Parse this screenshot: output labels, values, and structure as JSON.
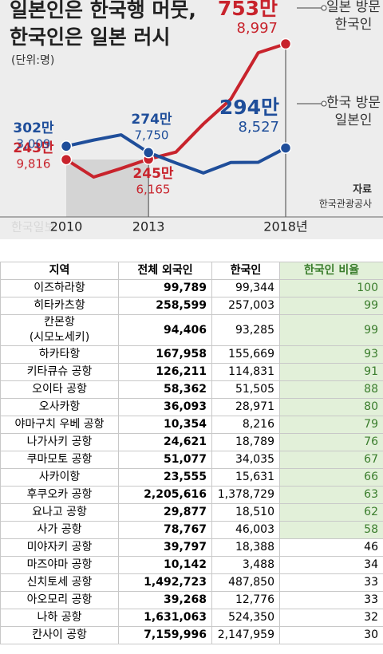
{
  "chart_data": {
    "type": "line",
    "title": "일본인은 한국행 머뭇,\n한국인은 일본 러시",
    "subtitle": "(단위:명)",
    "categories": [
      "2010",
      null,
      null,
      "2013",
      null,
      null,
      null,
      null,
      "2018년"
    ],
    "series": [
      {
        "name": "일본 방문 한국인",
        "color": "#c8232c",
        "values": [
          243,
          166,
          204,
          245,
          276,
          400,
          509,
          714,
          753
        ],
        "value_labels": [
          "243만",
          null,
          null,
          "245만",
          null,
          null,
          null,
          null,
          "753만"
        ],
        "secondary_labels": [
          "9,816",
          null,
          null,
          "6,165",
          null,
          null,
          null,
          null,
          "8,997"
        ]
      },
      {
        "name": "한국 방문 일본인",
        "color": "#1f4e9a",
        "values": [
          302,
          329,
          352,
          274,
          228,
          184,
          230,
          231,
          294
        ],
        "value_labels": [
          "302만",
          null,
          null,
          "274만",
          null,
          null,
          null,
          null,
          "294만"
        ],
        "secondary_labels": [
          "3,009",
          null,
          null,
          "7,750",
          null,
          null,
          null,
          null,
          "8,527"
        ]
      }
    ],
    "source_title": "자료",
    "source": "한국관광공사",
    "watermark": "한국일보"
  },
  "table": {
    "columns": [
      "지역",
      "전체 외국인",
      "한국인",
      "한국인 비율"
    ],
    "rows": [
      [
        "이즈하라항",
        "99,789",
        "99,344",
        "100"
      ],
      [
        "히타카츠항",
        "258,599",
        "257,003",
        "99"
      ],
      [
        "칸몬항\n(시모노세키)",
        "94,406",
        "93,285",
        "99"
      ],
      [
        "하카타항",
        "167,958",
        "155,669",
        "93"
      ],
      [
        "키타큐슈 공항",
        "126,211",
        "114,831",
        "91"
      ],
      [
        "오이타 공항",
        "58,362",
        "51,505",
        "88"
      ],
      [
        "오사카항",
        "36,093",
        "28,971",
        "80"
      ],
      [
        "야마구치 우베 공항",
        "10,354",
        "8,216",
        "79"
      ],
      [
        "나가사키 공항",
        "24,621",
        "18,789",
        "76"
      ],
      [
        "쿠마모토 공항",
        "51,077",
        "34,035",
        "67"
      ],
      [
        "사카이항",
        "23,555",
        "15,631",
        "66"
      ],
      [
        "후쿠오카 공항",
        "2,205,616",
        "1,378,729",
        "63"
      ],
      [
        "요나고 공항",
        "29,877",
        "18,510",
        "62"
      ],
      [
        "사가 공항",
        "78,767",
        "46,003",
        "58"
      ],
      [
        "미야자키 공항",
        "39,797",
        "18,388",
        "46"
      ],
      [
        "마즈야마 공항",
        "10,142",
        "3,488",
        "34"
      ],
      [
        "신치토세 공항",
        "1,492,723",
        "487,850",
        "33"
      ],
      [
        "아오모리 공항",
        "39,268",
        "12,776",
        "33"
      ],
      [
        "나하 공항",
        "1,631,063",
        "524,350",
        "32"
      ],
      [
        "칸사이 공항",
        "7,159,996",
        "2,147,959",
        "30"
      ]
    ]
  }
}
